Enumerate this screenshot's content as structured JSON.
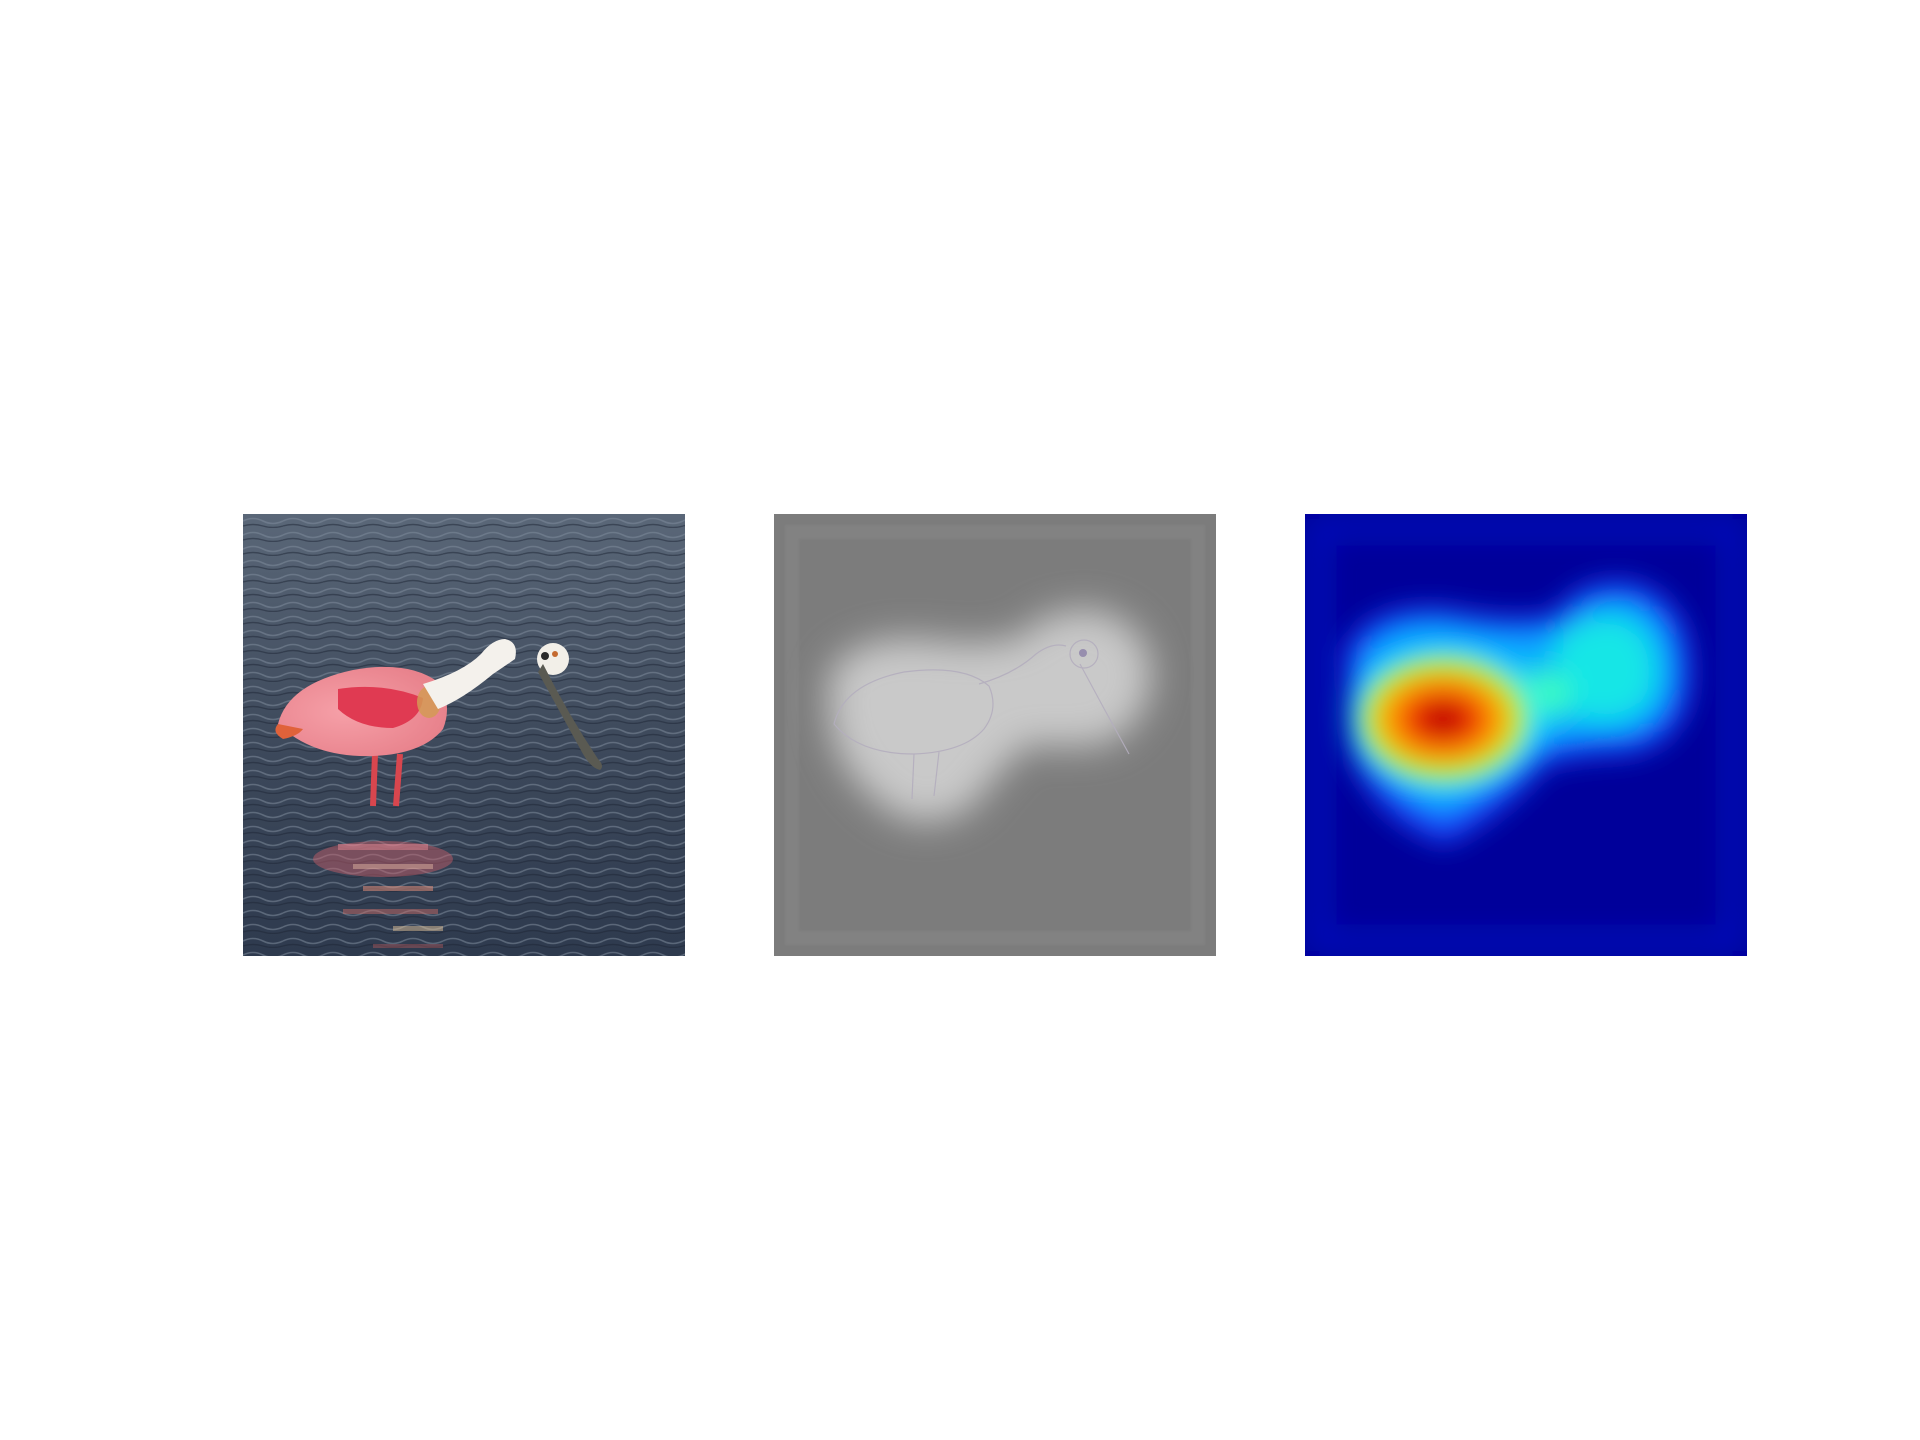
{
  "figure": {
    "panels": [
      {
        "id": "photo",
        "subject": "roseate-spoonbill-wading",
        "background": "#4a5566"
      },
      {
        "id": "guided",
        "subject": "saliency-gray",
        "background": "#7c7c7c"
      },
      {
        "id": "heatmap",
        "subject": "heatmap-jet",
        "background": "#00009a"
      }
    ]
  }
}
